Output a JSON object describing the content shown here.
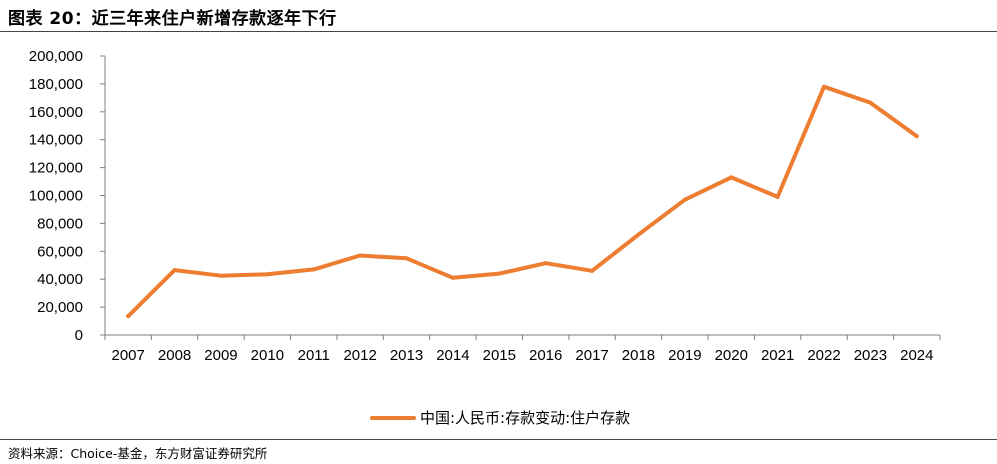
{
  "figure": {
    "title": "图表 20：近三年来住户新增存款逐年下行",
    "source": "资料来源：Choice-基金，东方财富证券研究所"
  },
  "chart_data": {
    "type": "line",
    "x": [
      "2007",
      "2008",
      "2009",
      "2010",
      "2011",
      "2012",
      "2013",
      "2014",
      "2015",
      "2016",
      "2017",
      "2018",
      "2019",
      "2020",
      "2021",
      "2022",
      "2023",
      "2024"
    ],
    "series": [
      {
        "name": "中国:人民币:存款变动:住户存款",
        "color": "#ED7D31",
        "values": [
          13500,
          46500,
          42500,
          43500,
          47000,
          57000,
          55000,
          41000,
          44000,
          51500,
          46000,
          72000,
          97000,
          113000,
          99000,
          178000,
          166500,
          142500
        ]
      }
    ],
    "y_ticks": [
      "200,000",
      "180,000",
      "160,000",
      "140,000",
      "120,000",
      "100,000",
      "80,000",
      "60,000",
      "40,000",
      "20,000",
      "0"
    ],
    "ylim": [
      0,
      200000
    ],
    "grid": false,
    "legend": "bottom-center"
  }
}
